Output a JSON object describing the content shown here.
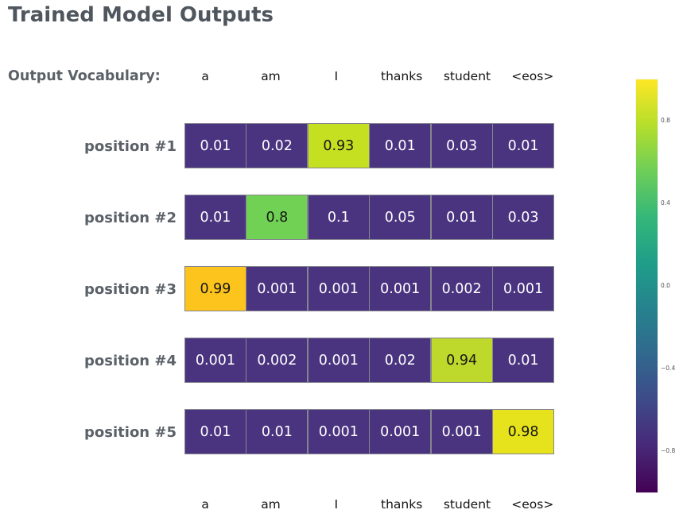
{
  "title": "Trained Model Outputs",
  "vocab_caption": "Output Vocabulary:",
  "chart_data": {
    "type": "heatmap",
    "title": "Trained Model Outputs",
    "columns": [
      "a",
      "am",
      "I",
      "thanks",
      "student",
      "<eos>"
    ],
    "rows": [
      {
        "label": "position #1",
        "values": [
          0.01,
          0.02,
          0.93,
          0.01,
          0.03,
          0.01
        ],
        "display": [
          "0.01",
          "0.02",
          "0.93",
          "0.01",
          "0.03",
          "0.01"
        ],
        "colors": [
          "#4a3480",
          "#4a3480",
          "#c5e021",
          "#4a3480",
          "#4a3480",
          "#4a3480"
        ]
      },
      {
        "label": "position #2",
        "values": [
          0.01,
          0.8,
          0.1,
          0.05,
          0.01,
          0.03
        ],
        "display": [
          "0.01",
          "0.8",
          "0.1",
          "0.05",
          "0.01",
          "0.03"
        ],
        "colors": [
          "#4a3480",
          "#70d155",
          "#4a3480",
          "#4a3480",
          "#4a3480",
          "#4a3480"
        ]
      },
      {
        "label": "position #3",
        "values": [
          0.99,
          0.001,
          0.001,
          0.001,
          0.002,
          0.001
        ],
        "display": [
          "0.99",
          "0.001",
          "0.001",
          "0.001",
          "0.002",
          "0.001"
        ],
        "colors": [
          "#fcc41c",
          "#4a3480",
          "#4a3480",
          "#4a3480",
          "#4a3480",
          "#4a3480"
        ]
      },
      {
        "label": "position #4",
        "values": [
          0.001,
          0.002,
          0.001,
          0.02,
          0.94,
          0.01
        ],
        "display": [
          "0.001",
          "0.002",
          "0.001",
          "0.02",
          "0.94",
          "0.01"
        ],
        "colors": [
          "#4a3480",
          "#4a3480",
          "#4a3480",
          "#4a3480",
          "#bed82c",
          "#4a3480"
        ]
      },
      {
        "label": "position #5",
        "values": [
          0.01,
          0.01,
          0.001,
          0.001,
          0.001,
          0.98
        ],
        "display": [
          "0.01",
          "0.01",
          "0.001",
          "0.001",
          "0.001",
          "0.98"
        ],
        "colors": [
          "#4a3480",
          "#4a3480",
          "#4a3480",
          "#4a3480",
          "#4a3480",
          "#e6e31c"
        ]
      }
    ],
    "colorbar": {
      "colormap": "viridis",
      "range": [
        -1,
        1
      ],
      "tick_labels": [
        "0.8",
        "0.4",
        "0.0",
        "−0.4",
        "−0.8"
      ],
      "tick_values": [
        0.8,
        0.4,
        0.0,
        -0.4,
        -0.8
      ],
      "gradient_stops": [
        "#440154",
        "#482878",
        "#3e4a89",
        "#31688e",
        "#26828e",
        "#1f9e89",
        "#35b779",
        "#6ece58",
        "#b5de2b",
        "#fde725"
      ]
    },
    "layout": {
      "legend_position": "right",
      "grid": false,
      "cell_text_light": "#ffffff",
      "cell_text_dark": "#151515"
    }
  }
}
